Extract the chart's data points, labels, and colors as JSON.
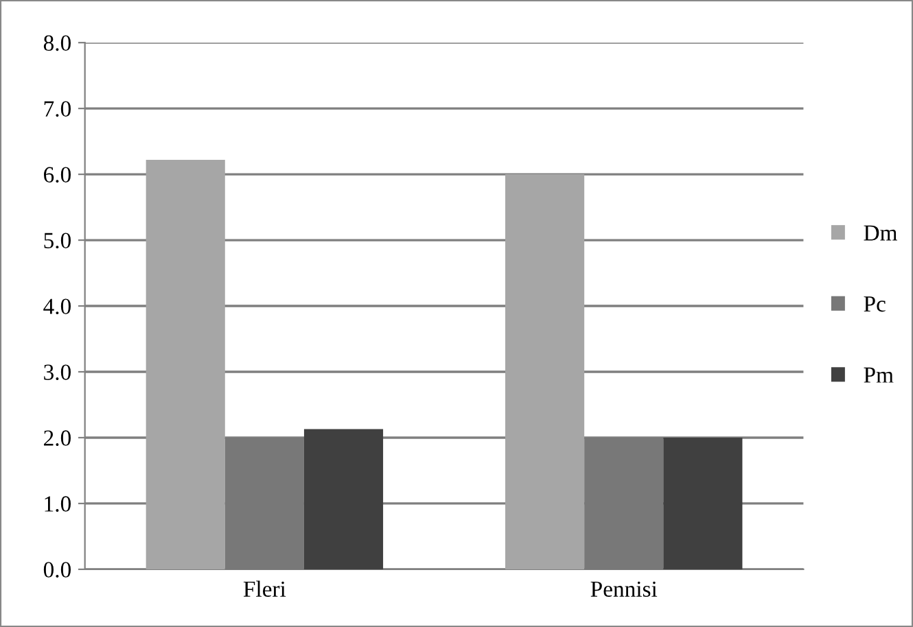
{
  "chart_data": {
    "type": "bar",
    "categories": [
      "Fleri",
      "Pennisi"
    ],
    "series": [
      {
        "name": "Dm",
        "color": "#a6a6a6",
        "values": [
          6.22,
          6.0
        ]
      },
      {
        "name": "Pc",
        "color": "#787878",
        "values": [
          2.0,
          2.0
        ]
      },
      {
        "name": "Pm",
        "color": "#404040",
        "values": [
          2.13,
          2.0
        ]
      }
    ],
    "ylim": [
      0,
      8
    ],
    "yticks": [
      {
        "value": 0,
        "label": "0.0"
      },
      {
        "value": 1,
        "label": "1.0"
      },
      {
        "value": 2,
        "label": "2.0"
      },
      {
        "value": 3,
        "label": "3.0"
      },
      {
        "value": 4,
        "label": "4.0"
      },
      {
        "value": 5,
        "label": "5.0"
      },
      {
        "value": 6,
        "label": "6.0"
      },
      {
        "value": 7,
        "label": "7.0"
      },
      {
        "value": 8,
        "label": "8.0"
      }
    ],
    "grid": "y",
    "legend": "right"
  }
}
